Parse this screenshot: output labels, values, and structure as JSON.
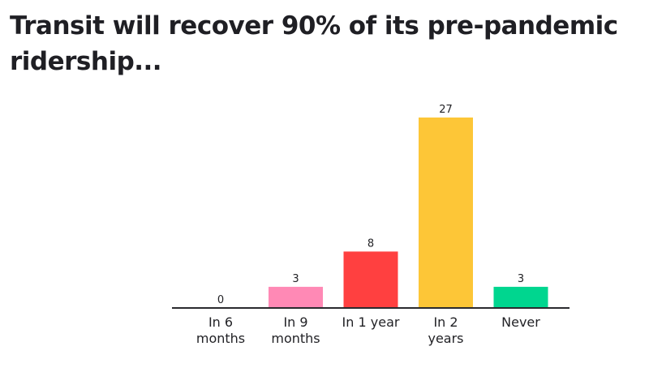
{
  "chart_data": {
    "type": "bar",
    "title": "Transit will recover 90% of its pre-pandemic ridership...",
    "categories": [
      [
        "In 6",
        "months"
      ],
      [
        "In 9",
        "months"
      ],
      [
        "In 1 year"
      ],
      [
        "In 2",
        "years"
      ],
      [
        "Never"
      ]
    ],
    "values": [
      0,
      3,
      8,
      27,
      3
    ],
    "colors": [
      "#5a8dee",
      "#ff89b5",
      "#ff4040",
      "#fdc637",
      "#00d68f"
    ],
    "data_labels": [
      "0",
      "3",
      "8",
      "27",
      "3"
    ],
    "ylim": [
      0,
      27
    ],
    "grid": false,
    "legend": "none"
  }
}
